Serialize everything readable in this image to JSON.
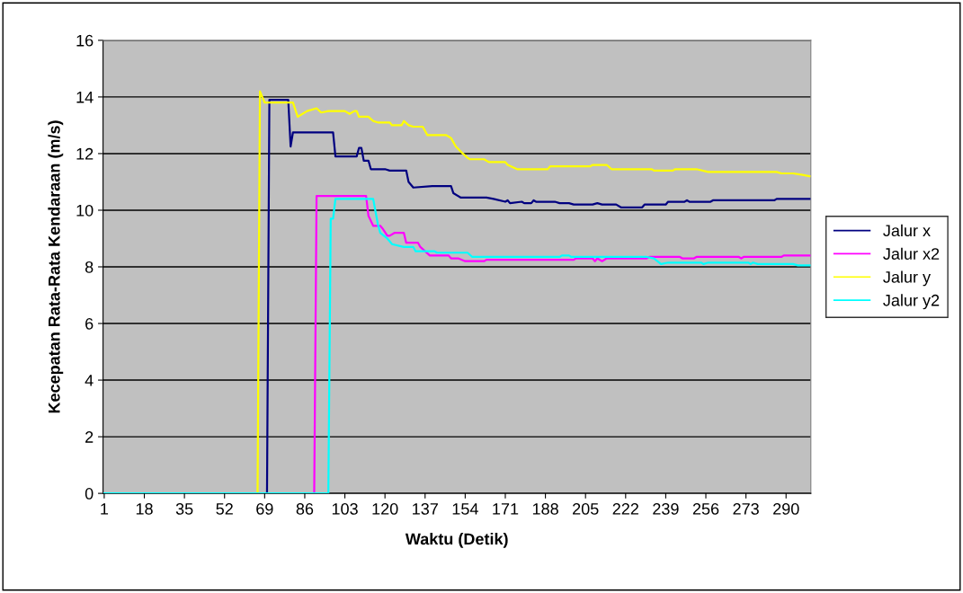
{
  "chart_data": {
    "type": "line",
    "xlabel": "Waktu (Detik)",
    "ylabel": "Kecepatan Rata-Rata Kendaraan (m/s)",
    "xlim": [
      0.5,
      300.5
    ],
    "xticks": [
      1,
      18,
      35,
      52,
      69,
      86,
      103,
      120,
      137,
      154,
      171,
      188,
      205,
      222,
      239,
      256,
      273,
      290
    ],
    "ylim": [
      0,
      16
    ],
    "yticks": [
      0,
      2,
      4,
      6,
      8,
      10,
      12,
      14,
      16
    ],
    "grid": "y",
    "legend": "right",
    "marker": "none",
    "line_style": "solid",
    "series": [
      {
        "name": "Jalur x",
        "color": "#000080",
        "x": [
          1,
          70,
          71,
          79,
          80,
          81,
          98,
          99,
          108,
          109,
          110,
          111,
          113,
          114,
          120,
          122,
          129,
          130,
          132,
          140,
          148,
          149,
          152,
          163,
          166,
          171,
          172,
          173,
          178,
          179,
          182,
          183,
          184,
          192,
          194,
          198,
          200,
          208,
          210,
          212,
          218,
          220,
          229,
          230,
          239,
          240,
          247,
          248,
          249,
          258,
          259,
          285,
          286,
          300
        ],
        "values": [
          0,
          0,
          13.9,
          13.9,
          12.25,
          12.75,
          12.75,
          11.9,
          11.9,
          12.2,
          12.2,
          11.75,
          11.75,
          11.45,
          11.45,
          11.4,
          11.4,
          11.0,
          10.8,
          10.85,
          10.85,
          10.6,
          10.45,
          10.45,
          10.4,
          10.3,
          10.35,
          10.25,
          10.3,
          10.25,
          10.25,
          10.35,
          10.3,
          10.3,
          10.25,
          10.25,
          10.2,
          10.2,
          10.25,
          10.2,
          10.2,
          10.1,
          10.1,
          10.2,
          10.2,
          10.3,
          10.3,
          10.35,
          10.3,
          10.3,
          10.35,
          10.35,
          10.4,
          10.4
        ]
      },
      {
        "name": "Jalur x2",
        "color": "#ff00ff",
        "x": [
          1,
          90,
          91,
          112,
          113,
          115,
          118,
          119,
          121,
          122,
          124,
          128,
          129,
          134,
          135,
          137,
          139,
          147,
          148,
          151,
          154,
          162,
          163,
          200,
          201,
          208,
          209,
          210,
          212,
          214,
          231,
          232,
          245,
          246,
          251,
          252,
          270,
          271,
          272,
          288,
          289,
          300
        ],
        "values": [
          0,
          0,
          10.5,
          10.5,
          9.8,
          9.45,
          9.45,
          9.35,
          9.1,
          9.1,
          9.2,
          9.2,
          8.85,
          8.85,
          8.7,
          8.55,
          8.4,
          8.4,
          8.3,
          8.3,
          8.2,
          8.2,
          8.25,
          8.25,
          8.3,
          8.3,
          8.2,
          8.3,
          8.2,
          8.3,
          8.3,
          8.35,
          8.35,
          8.3,
          8.3,
          8.35,
          8.35,
          8.3,
          8.35,
          8.35,
          8.4,
          8.4
        ]
      },
      {
        "name": "Jalur y",
        "color": "#ffff00",
        "x": [
          1,
          66,
          67,
          69,
          81,
          83,
          87,
          91,
          93,
          96,
          103,
          105,
          107,
          108,
          109,
          113,
          115,
          117,
          122,
          123,
          127,
          128,
          130,
          132,
          136,
          138,
          146,
          148,
          150,
          153,
          155,
          156,
          162,
          164,
          171,
          172,
          176,
          189,
          190,
          207,
          208,
          214,
          216,
          233,
          234,
          242,
          243,
          252,
          257,
          286,
          288,
          293,
          297,
          300
        ],
        "values": [
          0,
          0,
          14.2,
          13.8,
          13.8,
          13.3,
          13.5,
          13.6,
          13.45,
          13.5,
          13.5,
          13.4,
          13.5,
          13.5,
          13.3,
          13.3,
          13.15,
          13.1,
          13.1,
          13.0,
          13.0,
          13.15,
          13.0,
          12.95,
          12.95,
          12.65,
          12.65,
          12.55,
          12.25,
          12.0,
          11.85,
          11.8,
          11.8,
          11.7,
          11.7,
          11.6,
          11.45,
          11.45,
          11.55,
          11.55,
          11.6,
          11.6,
          11.45,
          11.45,
          11.4,
          11.4,
          11.45,
          11.45,
          11.35,
          11.35,
          11.3,
          11.3,
          11.25,
          11.2
        ]
      },
      {
        "name": "Jalur y2",
        "color": "#00ffff",
        "x": [
          1,
          96,
          97,
          98,
          99,
          115,
          117,
          118,
          121,
          123,
          128,
          132,
          133,
          141,
          142,
          155,
          157,
          194,
          195,
          198,
          199,
          231,
          234,
          237,
          240,
          254,
          255,
          257,
          274,
          275,
          276,
          278,
          293,
          295,
          300
        ],
        "values": [
          0,
          0,
          9.7,
          9.7,
          10.4,
          10.4,
          9.5,
          9.2,
          9.0,
          8.8,
          8.7,
          8.7,
          8.55,
          8.55,
          8.5,
          8.5,
          8.35,
          8.35,
          8.4,
          8.4,
          8.35,
          8.35,
          8.3,
          8.1,
          8.15,
          8.15,
          8.1,
          8.15,
          8.15,
          8.1,
          8.15,
          8.1,
          8.1,
          8.05,
          8.05
        ]
      }
    ]
  }
}
